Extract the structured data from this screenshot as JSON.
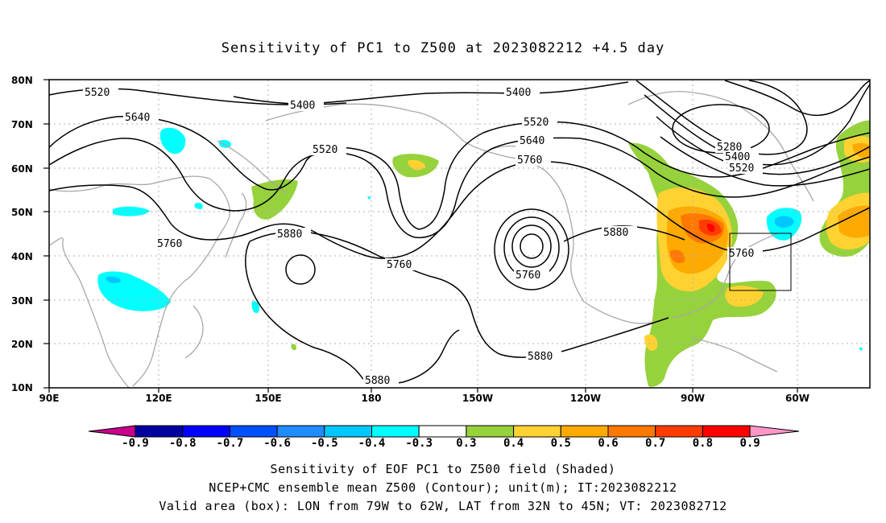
{
  "title": "Sensitivity of PC1 to Z500 at 2023082212 +4.5 day",
  "axes": {
    "lon_ticks": [
      "90E",
      "120E",
      "150E",
      "180",
      "150W",
      "120W",
      "90W",
      "60W"
    ],
    "lat_ticks": [
      "80N",
      "70N",
      "60N",
      "50N",
      "40N",
      "30N",
      "20N",
      "10N"
    ]
  },
  "contour_labels": [
    "5520",
    "5400",
    "5640",
    "5520",
    "5520",
    "5640",
    "5400",
    "5760",
    "5880",
    "5760",
    "5760",
    "5880",
    "5760",
    "5280",
    "5400",
    "5520",
    "5880",
    "5880"
  ],
  "colorbar": {
    "labels": [
      "-0.9",
      "-0.8",
      "-0.7",
      "-0.6",
      "-0.5",
      "-0.4",
      "-0.3",
      "0.3",
      "0.4",
      "0.5",
      "0.6",
      "0.7",
      "0.8",
      "0.9"
    ],
    "colors": [
      "#0000a0",
      "#0000ff",
      "#0050ff",
      "#1e8cff",
      "#00c8ff",
      "#00ffff",
      "#ffffff",
      "#96d23c",
      "#ffd232",
      "#ffaa00",
      "#ff7800",
      "#ff3c00",
      "#ff0000"
    ],
    "low_arrow": "#c8008c",
    "high_arrow": "#ff96c8"
  },
  "captions": [
    "Sensitivity of EOF PC1 to Z500 field (Shaded)",
    "NCEP+CMC ensemble mean Z500 (Contour); unit(m); IT:2023082212",
    "Valid area (box): LON from 79W to 62W, LAT from 32N to 45N; VT: 2023082712"
  ]
}
